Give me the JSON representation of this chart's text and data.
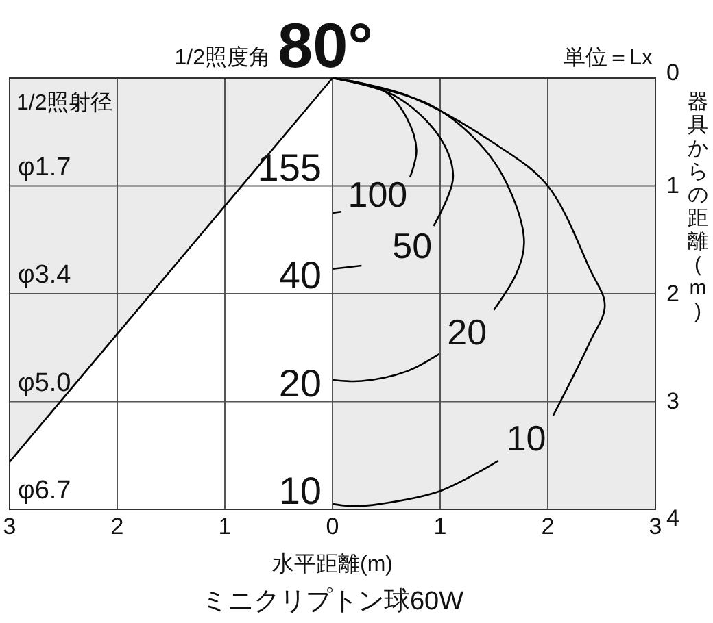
{
  "chart_data": {
    "type": "line",
    "title": "1/2照度角",
    "subtitle": "80°",
    "xlabel": "水平距離(m)",
    "ylabel": "器具からの距離(m)",
    "xlim": [
      -3,
      3
    ],
    "xticks": [
      {
        "value": -3,
        "label": "3"
      },
      {
        "value": -2,
        "label": "2"
      },
      {
        "value": -1,
        "label": "1"
      },
      0,
      1,
      2,
      3
    ],
    "ylim": [
      4,
      0
    ],
    "yticks": [
      0,
      1,
      2,
      3,
      4
    ],
    "grid": true,
    "line_style": "solid",
    "series": [
      {
        "name": "100",
        "color": "#000000",
        "x": [
          0,
          0.48,
          0.69,
          0.78,
          0.72,
          0.42,
          0.08,
          0
        ],
        "values": [
          0,
          0.12,
          0.37,
          0.67,
          0.92,
          null,
          1.24,
          1.25
        ]
      },
      {
        "name": "50",
        "color": "#000000",
        "x": [
          0,
          0.57,
          0.99,
          1.12,
          0.94,
          0.74,
          0.27,
          0
        ],
        "values": [
          0,
          0.16,
          0.54,
          0.92,
          1.37,
          null,
          1.74,
          1.77
        ]
      },
      {
        "name": "20",
        "color": "#000000",
        "x": [
          0,
          0.91,
          1.42,
          1.67,
          1.78,
          1.71,
          1.5,
          1.25,
          0.99,
          0.69,
          0.27,
          0
        ],
        "values": [
          0,
          0.25,
          0.67,
          1.09,
          1.52,
          1.81,
          2.15,
          null,
          2.56,
          2.72,
          2.81,
          2.8
        ]
      },
      {
        "name": "10",
        "color": "#000000",
        "x": [
          0,
          0.69,
          1.54,
          2,
          2.39,
          2.53,
          2.39,
          2.05,
          1.8,
          1.54,
          1,
          0.44,
          0.19,
          0
        ],
        "values": [
          0,
          0.16,
          0.63,
          1,
          1.77,
          2.11,
          2.45,
          3.13,
          null,
          3.55,
          3.83,
          3.95,
          3.97,
          3.95
        ]
      },
      {
        "color": "#000000",
        "x": [
          0,
          -3
        ],
        "values": [
          0,
          3.56
        ]
      }
    ],
    "annotations": [
      "1/2照射径",
      "単位＝Lx",
      "ミニクリプトン球60W",
      "155",
      "40",
      "20",
      "10",
      "φ1.7",
      "φ3.4",
      "φ5.0",
      "φ6.7"
    ]
  }
}
